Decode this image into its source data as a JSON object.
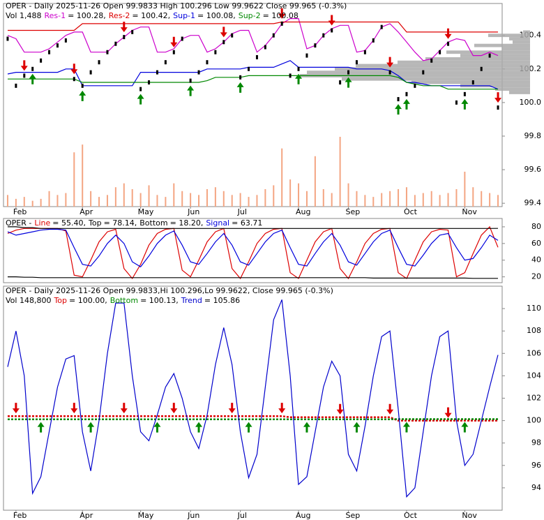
{
  "chart_data": [
    {
      "type": "stock",
      "title": "OPER - Daily 2025-11-26 Open 99.9833  High 100.296  Low 99.9622  Close 99.965 (-0.3%)",
      "subtitle": "Vol 1,488",
      "categories": [
        null,
        "Feb",
        null,
        null,
        null,
        null,
        null,
        null,
        null,
        "Apr",
        null,
        null,
        null,
        null,
        null,
        null,
        "May",
        null,
        null,
        null,
        null,
        null,
        "Jun",
        null,
        null,
        null,
        null,
        null,
        "Jul",
        null,
        null,
        null,
        null,
        null,
        null,
        "Aug",
        null,
        null,
        null,
        null,
        null,
        "Sep",
        null,
        null,
        null,
        null,
        null,
        null,
        "Oct",
        null,
        null,
        null,
        null,
        null,
        null,
        "Nov",
        null,
        null,
        null,
        null
      ],
      "values": [
        100.38,
        100.1,
        100.16,
        100.2,
        100.25,
        100.3,
        100.34,
        100.37,
        100.14,
        100.1,
        100.18,
        100.24,
        100.3,
        100.35,
        100.39,
        100.42,
        100.08,
        100.12,
        100.18,
        100.24,
        100.3,
        100.38,
        100.13,
        100.18,
        100.24,
        100.3,
        100.36,
        100.4,
        100.15,
        100.2,
        100.27,
        100.33,
        100.4,
        100.47,
        100.16,
        100.2,
        100.28,
        100.34,
        100.4,
        100.43,
        100.12,
        100.18,
        100.24,
        100.3,
        100.37,
        100.45,
        100.18,
        100.02,
        100.05,
        100.1,
        100.18,
        100.25,
        100.3,
        100.35,
        100.0,
        100.05,
        100.12,
        100.2,
        100.28,
        99.97
      ],
      "color": "#000000",
      "series": [
        {
          "name": "Res-1",
          "legend_text": "= 100.28,",
          "color": "#cc00cc",
          "values": [
            100.4,
            100.38,
            100.3,
            100.3,
            100.3,
            100.32,
            100.36,
            100.4,
            100.42,
            100.42,
            100.3,
            100.3,
            100.3,
            100.35,
            100.39,
            100.43,
            100.45,
            100.45,
            100.3,
            100.3,
            100.32,
            100.38,
            100.4,
            100.4,
            100.3,
            100.32,
            100.36,
            100.41,
            100.43,
            100.43,
            100.3,
            100.34,
            100.4,
            100.47,
            100.5,
            100.5,
            100.32,
            100.34,
            100.4,
            100.44,
            100.46,
            100.46,
            100.3,
            100.31,
            100.37,
            100.45,
            100.47,
            100.42,
            100.36,
            100.3,
            100.25,
            100.26,
            100.31,
            100.36,
            100.38,
            100.37,
            100.28,
            100.28,
            100.3,
            100.28
          ]
        },
        {
          "name": "Res-2",
          "legend_text": "= 100.42,",
          "color": "#dd0000",
          "values": [
            100.43,
            100.43,
            100.43,
            100.43,
            100.43,
            100.43,
            100.43,
            100.43,
            100.43,
            100.47,
            100.47,
            100.47,
            100.47,
            100.47,
            100.47,
            100.47,
            100.47,
            100.47,
            100.47,
            100.47,
            100.47,
            100.47,
            100.47,
            100.47,
            100.47,
            100.47,
            100.47,
            100.47,
            100.47,
            100.47,
            100.47,
            100.47,
            100.47,
            100.48,
            100.48,
            100.48,
            100.48,
            100.48,
            100.48,
            100.48,
            100.48,
            100.48,
            100.48,
            100.48,
            100.48,
            100.48,
            100.48,
            100.48,
            100.42,
            100.42,
            100.42,
            100.42,
            100.42,
            100.42,
            100.42,
            100.42,
            100.42,
            100.42,
            100.42,
            100.42
          ]
        },
        {
          "name": "Sup-1",
          "legend_text": "= 100.08,",
          "color": "#0000dd",
          "values": [
            100.17,
            100.18,
            100.18,
            100.18,
            100.18,
            100.18,
            100.18,
            100.2,
            100.2,
            100.1,
            100.1,
            100.1,
            100.1,
            100.1,
            100.1,
            100.1,
            100.18,
            100.18,
            100.18,
            100.18,
            100.18,
            100.18,
            100.18,
            100.18,
            100.2,
            100.2,
            100.2,
            100.2,
            100.2,
            100.21,
            100.21,
            100.21,
            100.21,
            100.23,
            100.25,
            100.21,
            100.21,
            100.21,
            100.21,
            100.21,
            100.21,
            100.21,
            100.2,
            100.2,
            100.2,
            100.2,
            100.19,
            100.16,
            100.12,
            100.12,
            100.11,
            100.1,
            100.1,
            100.1,
            100.1,
            100.1,
            100.1,
            100.1,
            100.1,
            100.08
          ]
        },
        {
          "name": "Sup-2",
          "legend_text": "= 100.08",
          "color": "#008800",
          "values": [
            100.14,
            100.14,
            100.14,
            100.14,
            100.14,
            100.14,
            100.14,
            100.14,
            100.14,
            100.12,
            100.12,
            100.12,
            100.12,
            100.12,
            100.12,
            100.12,
            100.12,
            100.12,
            100.12,
            100.12,
            100.12,
            100.12,
            100.12,
            100.12,
            100.13,
            100.15,
            100.15,
            100.15,
            100.15,
            100.16,
            100.16,
            100.16,
            100.16,
            100.16,
            100.16,
            100.16,
            100.16,
            100.16,
            100.16,
            100.16,
            100.16,
            100.16,
            100.16,
            100.16,
            100.16,
            100.16,
            100.16,
            100.15,
            100.12,
            100.11,
            100.1,
            100.1,
            100.1,
            100.08,
            100.08,
            100.08,
            100.08,
            100.08,
            100.08,
            100.08
          ]
        }
      ],
      "volume": [
        30,
        20,
        25,
        15,
        20,
        40,
        30,
        35,
        140,
        160,
        40,
        25,
        30,
        50,
        60,
        45,
        35,
        55,
        30,
        25,
        60,
        40,
        35,
        30,
        45,
        50,
        40,
        30,
        35,
        25,
        30,
        45,
        55,
        150,
        70,
        60,
        40,
        130,
        45,
        35,
        180,
        60,
        40,
        30,
        25,
        35,
        40,
        45,
        50,
        30,
        35,
        40,
        30,
        35,
        45,
        90,
        50,
        40,
        35,
        30
      ],
      "volume_color": "#f4a582",
      "volume_profile": {
        "levels": [
          100.06,
          100.08,
          100.1,
          100.12,
          100.14,
          100.16,
          100.18,
          100.2,
          100.22,
          100.24,
          100.26,
          100.28,
          100.3,
          100.32,
          100.34,
          100.36,
          100.38,
          100.4,
          100.42
        ],
        "values": [
          30,
          50,
          100,
          170,
          270,
          330,
          320,
          280,
          250,
          190,
          150,
          100,
          120,
          40,
          80,
          25,
          30,
          60,
          10
        ],
        "color": "#aaaaaa"
      },
      "sell_signals": [
        2,
        8,
        14,
        20,
        26,
        33,
        39,
        46,
        53,
        59
      ],
      "buy_signals": [
        3,
        9,
        16,
        22,
        28,
        35,
        41,
        47,
        48,
        55
      ],
      "ylim": [
        99.38,
        100.59
      ],
      "yticks": [
        {
          "value": 99.4,
          "label": "99.4"
        },
        {
          "value": 99.6,
          "label": "99.6"
        },
        {
          "value": 99.8,
          "label": "99.8"
        },
        {
          "value": 100,
          "label": "100.0"
        },
        {
          "value": 100.2,
          "label": "100.2"
        },
        {
          "value": 100.4,
          "label": "100.4"
        }
      ]
    },
    {
      "type": "line",
      "title": "OPER -",
      "series": [
        {
          "name": "Line",
          "legend_text": "= 55.40,",
          "color": "#dd0000",
          "values": [
            72,
            76,
            78,
            78,
            78,
            78,
            78,
            75,
            22,
            20,
            40,
            62,
            74,
            77,
            30,
            18,
            35,
            58,
            72,
            77,
            78,
            28,
            20,
            40,
            62,
            74,
            78,
            30,
            18,
            38,
            60,
            72,
            77,
            78,
            25,
            18,
            40,
            62,
            74,
            78,
            30,
            18,
            38,
            60,
            72,
            77,
            78,
            25,
            18,
            40,
            62,
            74,
            77,
            76,
            20,
            25,
            48,
            70,
            80,
            55.4
          ]
        },
        {
          "name": "Top",
          "legend_text": "= 78.14,",
          "color": "#000000",
          "values": [
            80,
            80,
            79,
            79,
            78,
            78,
            78,
            78,
            78,
            78,
            78,
            78,
            78,
            78,
            78,
            78,
            78,
            78,
            78,
            78,
            78,
            78,
            78,
            78,
            78,
            78,
            78,
            78,
            78,
            78,
            78,
            78,
            78,
            78,
            78,
            78,
            78,
            78,
            78,
            78,
            78,
            78,
            78,
            78,
            78,
            78,
            78,
            78,
            78,
            78,
            78,
            78,
            78,
            78,
            78,
            78,
            78,
            78,
            78,
            78.14
          ]
        },
        {
          "name": "Bottom",
          "legend_text": "= 18.20,",
          "color": "#000000",
          "values": [
            20,
            20,
            19.5,
            19.5,
            19,
            19,
            19,
            19,
            19,
            19,
            19,
            19,
            19,
            19,
            19,
            19,
            19,
            19,
            19,
            19,
            19,
            19,
            19,
            19,
            19,
            19,
            19,
            19,
            19,
            19,
            19,
            19,
            19,
            19,
            19,
            19,
            19,
            19,
            19,
            19,
            19,
            19,
            19,
            19,
            18.5,
            18.5,
            18.5,
            18.5,
            18.5,
            18.5,
            18.5,
            18.5,
            18.5,
            18.5,
            18.5,
            18.5,
            18.2,
            18.2,
            18.2,
            18.2
          ]
        },
        {
          "name": "Signal",
          "legend_text": "= 63.71",
          "color": "#0000dd",
          "values": [
            74,
            70,
            72,
            74,
            76,
            77,
            77,
            76,
            55,
            35,
            33,
            45,
            60,
            70,
            60,
            38,
            32,
            45,
            60,
            70,
            75,
            58,
            38,
            35,
            48,
            62,
            72,
            58,
            38,
            34,
            48,
            62,
            72,
            76,
            55,
            35,
            33,
            48,
            62,
            72,
            58,
            38,
            34,
            48,
            62,
            72,
            76,
            55,
            35,
            33,
            46,
            60,
            70,
            72,
            55,
            40,
            42,
            55,
            70,
            63.71
          ]
        }
      ],
      "ylim": [
        13,
        90
      ],
      "yticks": [
        20,
        40,
        60,
        80
      ]
    },
    {
      "type": "line",
      "title": "OPER - Daily 2025-11-26 Open 99.9833,Hi 100.296,Lo 99.9622, Close 99.965 (-0.3%)",
      "subtitle": "Vol 148,800",
      "categories": [
        null,
        "Feb",
        null,
        null,
        null,
        null,
        null,
        null,
        null,
        "Apr",
        null,
        null,
        null,
        null,
        null,
        null,
        "May",
        null,
        null,
        null,
        null,
        null,
        "Jun",
        null,
        null,
        null,
        null,
        null,
        "Jul",
        null,
        null,
        null,
        null,
        null,
        null,
        "Aug",
        null,
        null,
        null,
        null,
        null,
        "Sep",
        null,
        null,
        null,
        null,
        null,
        null,
        "Oct",
        null,
        null,
        null,
        null,
        null,
        null,
        "Nov",
        null,
        null,
        null,
        null
      ],
      "series": [
        {
          "name": "Top",
          "legend_text": "= 100.00,",
          "color": "#dd0000",
          "dashed": true,
          "values": [
            100.4,
            100.4,
            100.4,
            100.4,
            100.4,
            100.4,
            100.4,
            100.4,
            100.4,
            100.4,
            100.4,
            100.4,
            100.4,
            100.4,
            100.4,
            100.4,
            100.4,
            100.4,
            100.4,
            100.4,
            100.4,
            100.4,
            100.4,
            100.4,
            100.4,
            100.4,
            100.4,
            100.4,
            100.4,
            100.4,
            100.4,
            100.4,
            100.4,
            100.4,
            100.3,
            100.3,
            100.3,
            100.3,
            100.3,
            100.3,
            100.3,
            100.3,
            100.3,
            100.3,
            100.3,
            100.3,
            100.3,
            100.0,
            100.0,
            100.0,
            100.0,
            100.0,
            100.0,
            100.0,
            100.0,
            100.0,
            100.0,
            100.0,
            100.0,
            100.0
          ]
        },
        {
          "name": "Bottom",
          "legend_text": "= 100.13,",
          "color": "#008800",
          "dashed": true,
          "values": [
            100.12,
            100.12,
            100.12,
            100.12,
            100.12,
            100.12,
            100.12,
            100.12,
            100.12,
            100.12,
            100.12,
            100.12,
            100.12,
            100.12,
            100.12,
            100.12,
            100.12,
            100.12,
            100.12,
            100.12,
            100.12,
            100.12,
            100.12,
            100.12,
            100.12,
            100.12,
            100.12,
            100.12,
            100.12,
            100.12,
            100.12,
            100.12,
            100.12,
            100.12,
            100.12,
            100.12,
            100.12,
            100.12,
            100.12,
            100.12,
            100.12,
            100.12,
            100.12,
            100.12,
            100.12,
            100.12,
            100.12,
            100.13,
            100.13,
            100.13,
            100.13,
            100.13,
            100.13,
            100.13,
            100.13,
            100.13,
            100.13,
            100.13,
            100.13,
            100.13
          ]
        },
        {
          "name": "Trend",
          "legend_text": "= 105.86",
          "color": "#0000cc",
          "values": [
            104.8,
            108,
            104,
            93.5,
            95,
            99,
            103,
            105.5,
            105.8,
            99,
            95.5,
            100,
            106,
            110.5,
            110.5,
            104,
            99,
            98.2,
            100.5,
            103,
            104.2,
            102,
            99,
            97.5,
            100.5,
            105,
            108.3,
            105,
            99,
            94.9,
            97,
            103,
            109,
            110.8,
            104,
            94.3,
            95,
            99,
            103,
            105.3,
            104,
            97,
            95.5,
            99.5,
            104,
            107.5,
            108,
            101,
            93.2,
            94,
            99,
            104,
            107.5,
            108,
            100,
            96,
            97,
            100,
            103,
            105.86
          ]
        }
      ],
      "sell_signals": [
        1,
        8,
        14,
        20,
        27,
        33,
        40,
        46,
        53
      ],
      "buy_signals": [
        4,
        10,
        18,
        23,
        29,
        36,
        42,
        48,
        55
      ],
      "ylim": [
        92,
        112
      ],
      "yticks": [
        94,
        96,
        98,
        {
          "value": 100,
          "label": "100"
        },
        102,
        104,
        106,
        108,
        110
      ]
    }
  ]
}
